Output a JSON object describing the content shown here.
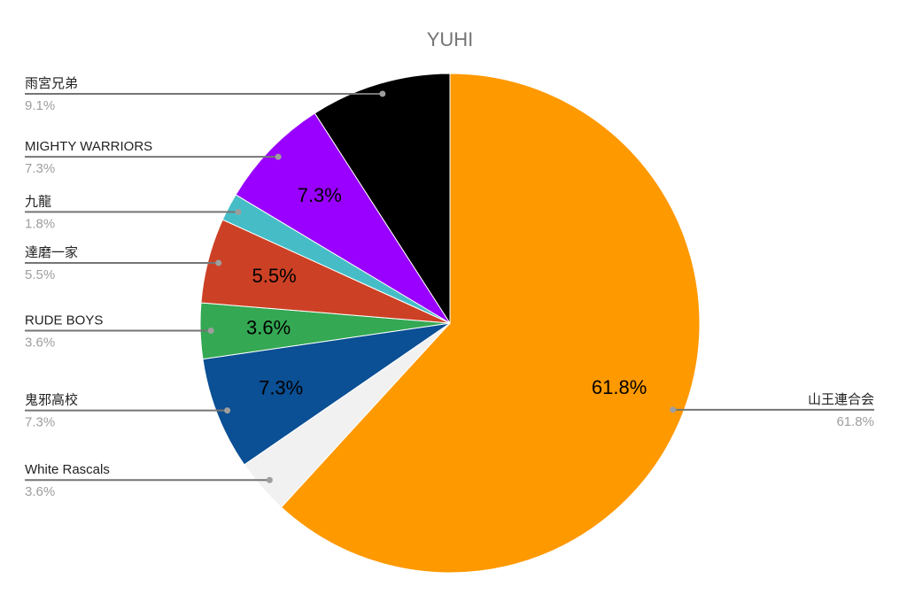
{
  "chart_data": {
    "type": "pie",
    "title": "YUHI",
    "categories": [
      "山王連合会",
      "White Rascals",
      "鬼邪高校",
      "RUDE BOYS",
      "達磨一家",
      "九龍",
      "MIGHTY WARRIORS",
      "雨宮兄弟"
    ],
    "values": [
      61.8,
      3.6,
      7.3,
      3.6,
      5.5,
      1.8,
      7.3,
      9.1
    ],
    "value_labels": [
      "61.8%",
      "3.6%",
      "7.3%",
      "3.6%",
      "5.5%",
      "1.8%",
      "7.3%",
      "9.1%"
    ],
    "colors": [
      "#ff9900",
      "#f1f1f1",
      "#0b4f94",
      "#34a853",
      "#cc4125",
      "#46bdc6",
      "#9900ff",
      "#000000"
    ],
    "show_inside_label": [
      true,
      false,
      true,
      true,
      true,
      false,
      true,
      false
    ]
  }
}
